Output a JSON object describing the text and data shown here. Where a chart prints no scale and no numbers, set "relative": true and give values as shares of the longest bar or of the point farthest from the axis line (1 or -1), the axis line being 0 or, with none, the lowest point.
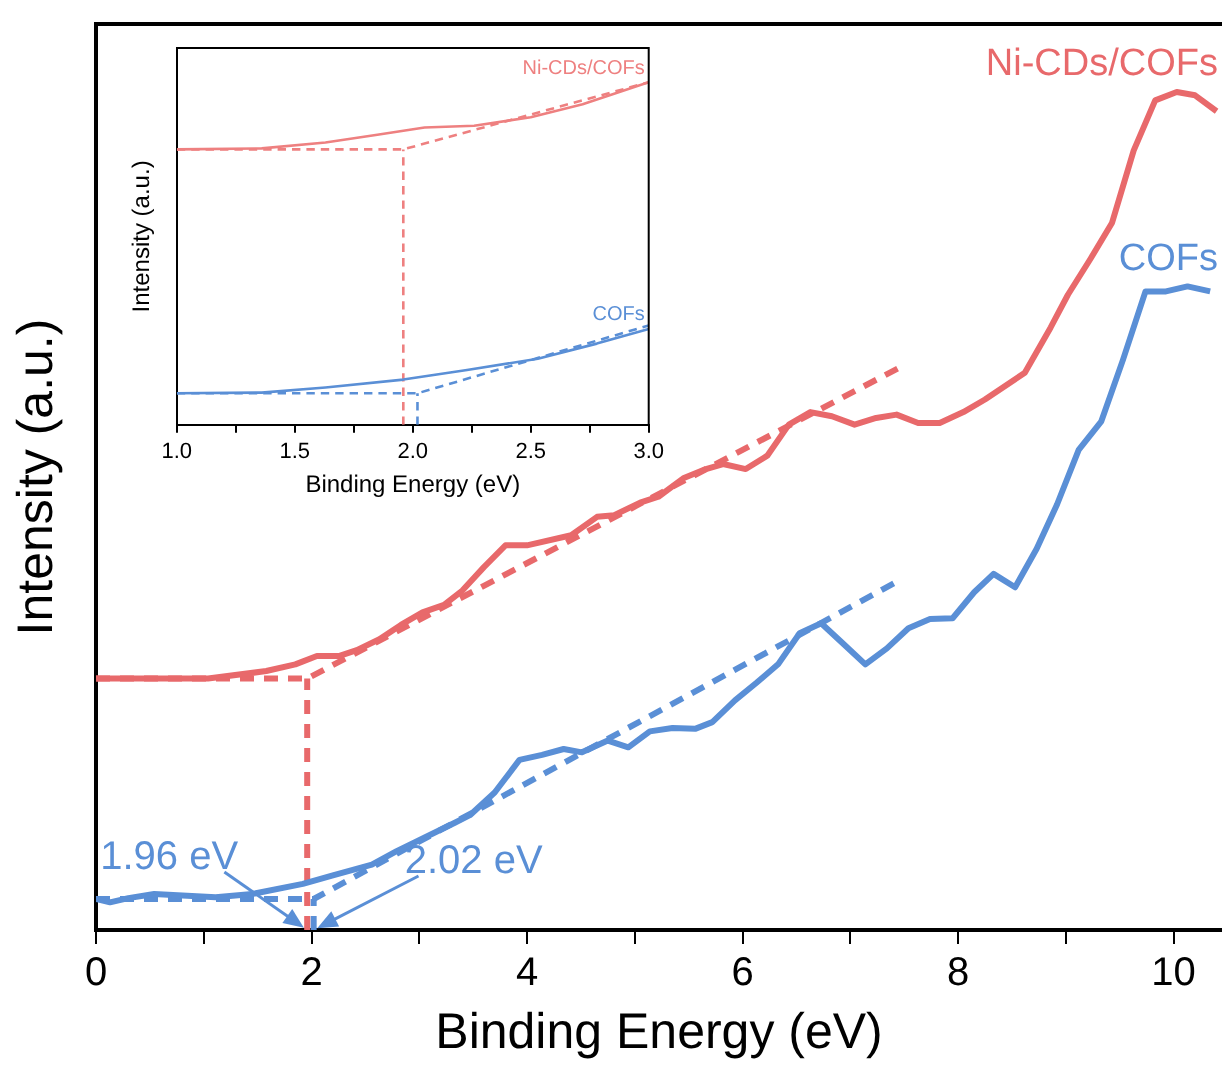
{
  "chart_data": [
    {
      "type": "line",
      "relative": true,
      "xlabel": "Binding Energy (eV)",
      "ylabel": "Intensity (a.u.)",
      "xlim": [
        0,
        10.45
      ],
      "xticks": [
        0,
        {
          "value": 1,
          "label": null
        },
        2,
        {
          "value": 3,
          "label": null
        },
        4,
        {
          "value": 5,
          "label": null
        },
        6,
        {
          "value": 7,
          "label": null
        },
        8,
        {
          "value": 9,
          "label": null
        },
        10
      ],
      "legend": false,
      "marker": "none",
      "line_style": "solid",
      "annotations": [
        {
          "text": "1.96 eV",
          "x": 1.96,
          "y": 0
        },
        {
          "text": "2.02 eV",
          "x": 2.02,
          "y": 0
        }
      ],
      "series": [
        {
          "name": "Ni-CDs/COFs",
          "color": "#e8696b",
          "x": [
            0,
            1.04,
            1.58,
            1.85,
            2.05,
            2.26,
            2.42,
            2.63,
            2.83,
            3.03,
            3.23,
            3.4,
            3.6,
            3.8,
            4.0,
            4.41,
            4.65,
            4.81,
            5.05,
            5.22,
            5.45,
            5.66,
            5.82,
            6.03,
            6.23,
            6.43,
            6.63,
            6.83,
            7.04,
            7.24,
            7.43,
            7.63,
            7.83,
            8.05,
            8.25,
            8.62,
            8.86,
            9.02,
            9.23,
            9.43,
            9.63,
            9.83,
            10.03,
            10.2,
            10.4
          ],
          "values": [
            0.3,
            0.3,
            0.309,
            0.317,
            0.327,
            0.327,
            0.334,
            0.347,
            0.364,
            0.379,
            0.388,
            0.405,
            0.433,
            0.459,
            0.459,
            0.471,
            0.493,
            0.495,
            0.51,
            0.517,
            0.539,
            0.55,
            0.556,
            0.55,
            0.566,
            0.603,
            0.618,
            0.613,
            0.603,
            0.611,
            0.615,
            0.605,
            0.605,
            0.618,
            0.633,
            0.665,
            0.719,
            0.758,
            0.801,
            0.844,
            0.93,
            0.99,
            1,
            0.996,
            0.977
          ]
        },
        {
          "name": "COFs",
          "color": "#5a8fd6",
          "x": [
            0,
            0.13,
            0.3,
            0.54,
            1.11,
            1.45,
            1.92,
            2.19,
            2.56,
            2.79,
            3.06,
            3.33,
            3.47,
            3.7,
            3.93,
            4.14,
            4.34,
            4.51,
            4.75,
            4.94,
            5.14,
            5.35,
            5.56,
            5.72,
            5.93,
            6.13,
            6.33,
            6.53,
            6.73,
            6.94,
            7.14,
            7.34,
            7.54,
            7.74,
            7.95,
            8.15,
            8.33,
            8.53,
            8.73,
            8.92,
            9.12,
            9.33,
            9.53,
            9.74,
            9.93,
            10.13,
            10.34
          ],
          "values": [
            0.037,
            0.033,
            0.038,
            0.043,
            0.039,
            0.043,
            0.055,
            0.065,
            0.078,
            0.094,
            0.111,
            0.128,
            0.137,
            0.164,
            0.203,
            0.209,
            0.216,
            0.212,
            0.226,
            0.218,
            0.237,
            0.241,
            0.24,
            0.248,
            0.274,
            0.295,
            0.317,
            0.354,
            0.366,
            0.341,
            0.317,
            0.336,
            0.36,
            0.371,
            0.372,
            0.403,
            0.425,
            0.409,
            0.455,
            0.508,
            0.573,
            0.607,
            0.68,
            0.762,
            0.762,
            0.768,
            0.762
          ]
        },
        {
          "color": "#e8696b",
          "line_style": "dashed",
          "x": [
            0,
            1.96,
            7.44
          ],
          "values": [
            0.3,
            0.3,
            0.67
          ]
        },
        {
          "color": "#e8696b",
          "line_style": "dashed",
          "x": [
            1.96,
            1.96
          ],
          "values": [
            0,
            0.3
          ]
        },
        {
          "color": "#5a8fd6",
          "line_style": "dashed",
          "x": [
            0,
            2.02,
            7.41
          ],
          "values": [
            0.037,
            0.037,
            0.414
          ]
        },
        {
          "color": "#5a8fd6",
          "line_style": "dashed",
          "x": [
            2.02,
            2.02
          ],
          "values": [
            0,
            0.037
          ]
        }
      ]
    },
    {
      "type": "line",
      "relative": true,
      "xlabel": "Binding Energy (eV)",
      "ylabel": "Intensity (a.u.)",
      "xlim": [
        1,
        3
      ],
      "xticks": [
        {
          "value": 1,
          "label": "1.0"
        },
        {
          "value": 1.25,
          "label": null
        },
        {
          "value": 1.5,
          "label": "1.5"
        },
        {
          "value": 1.75,
          "label": null
        },
        {
          "value": 2,
          "label": "2.0"
        },
        {
          "value": 2.25,
          "label": null
        },
        {
          "value": 2.5,
          "label": "2.5"
        },
        {
          "value": 2.75,
          "label": null
        },
        {
          "value": 3,
          "label": "3.0"
        }
      ],
      "legend": false,
      "marker": "none",
      "line_style": "solid",
      "series": [
        {
          "name": "Ni-CDs/COFs",
          "color": "#ee8080",
          "x": [
            1,
            1.36,
            1.63,
            1.85,
            2.05,
            2.26,
            2.5,
            2.72,
            3
          ],
          "values": [
            0.804,
            0.807,
            0.824,
            0.847,
            0.868,
            0.873,
            0.898,
            0.936,
            1
          ]
        },
        {
          "name": "COFs",
          "color": "#5a8fd6",
          "x": [
            1,
            1.36,
            1.63,
            1.96,
            2.23,
            2.53,
            2.78,
            3
          ],
          "values": [
            0.092,
            0.094,
            0.109,
            0.132,
            0.16,
            0.193,
            0.237,
            0.28
          ]
        },
        {
          "color": "#ee8080",
          "line_style": "dashed",
          "x": [
            1,
            1.96,
            3
          ],
          "values": [
            0.804,
            0.804,
            1
          ]
        },
        {
          "color": "#ee8080",
          "line_style": "dashed",
          "x": [
            1.96,
            1.96
          ],
          "values": [
            0,
            0.804
          ]
        },
        {
          "color": "#5a8fd6",
          "line_style": "dashed",
          "x": [
            1,
            2.02,
            3
          ],
          "values": [
            0.092,
            0.092,
            0.29
          ]
        },
        {
          "color": "#5a8fd6",
          "line_style": "dashed",
          "x": [
            2.02,
            2.02
          ],
          "values": [
            0,
            0.092
          ]
        }
      ]
    }
  ]
}
